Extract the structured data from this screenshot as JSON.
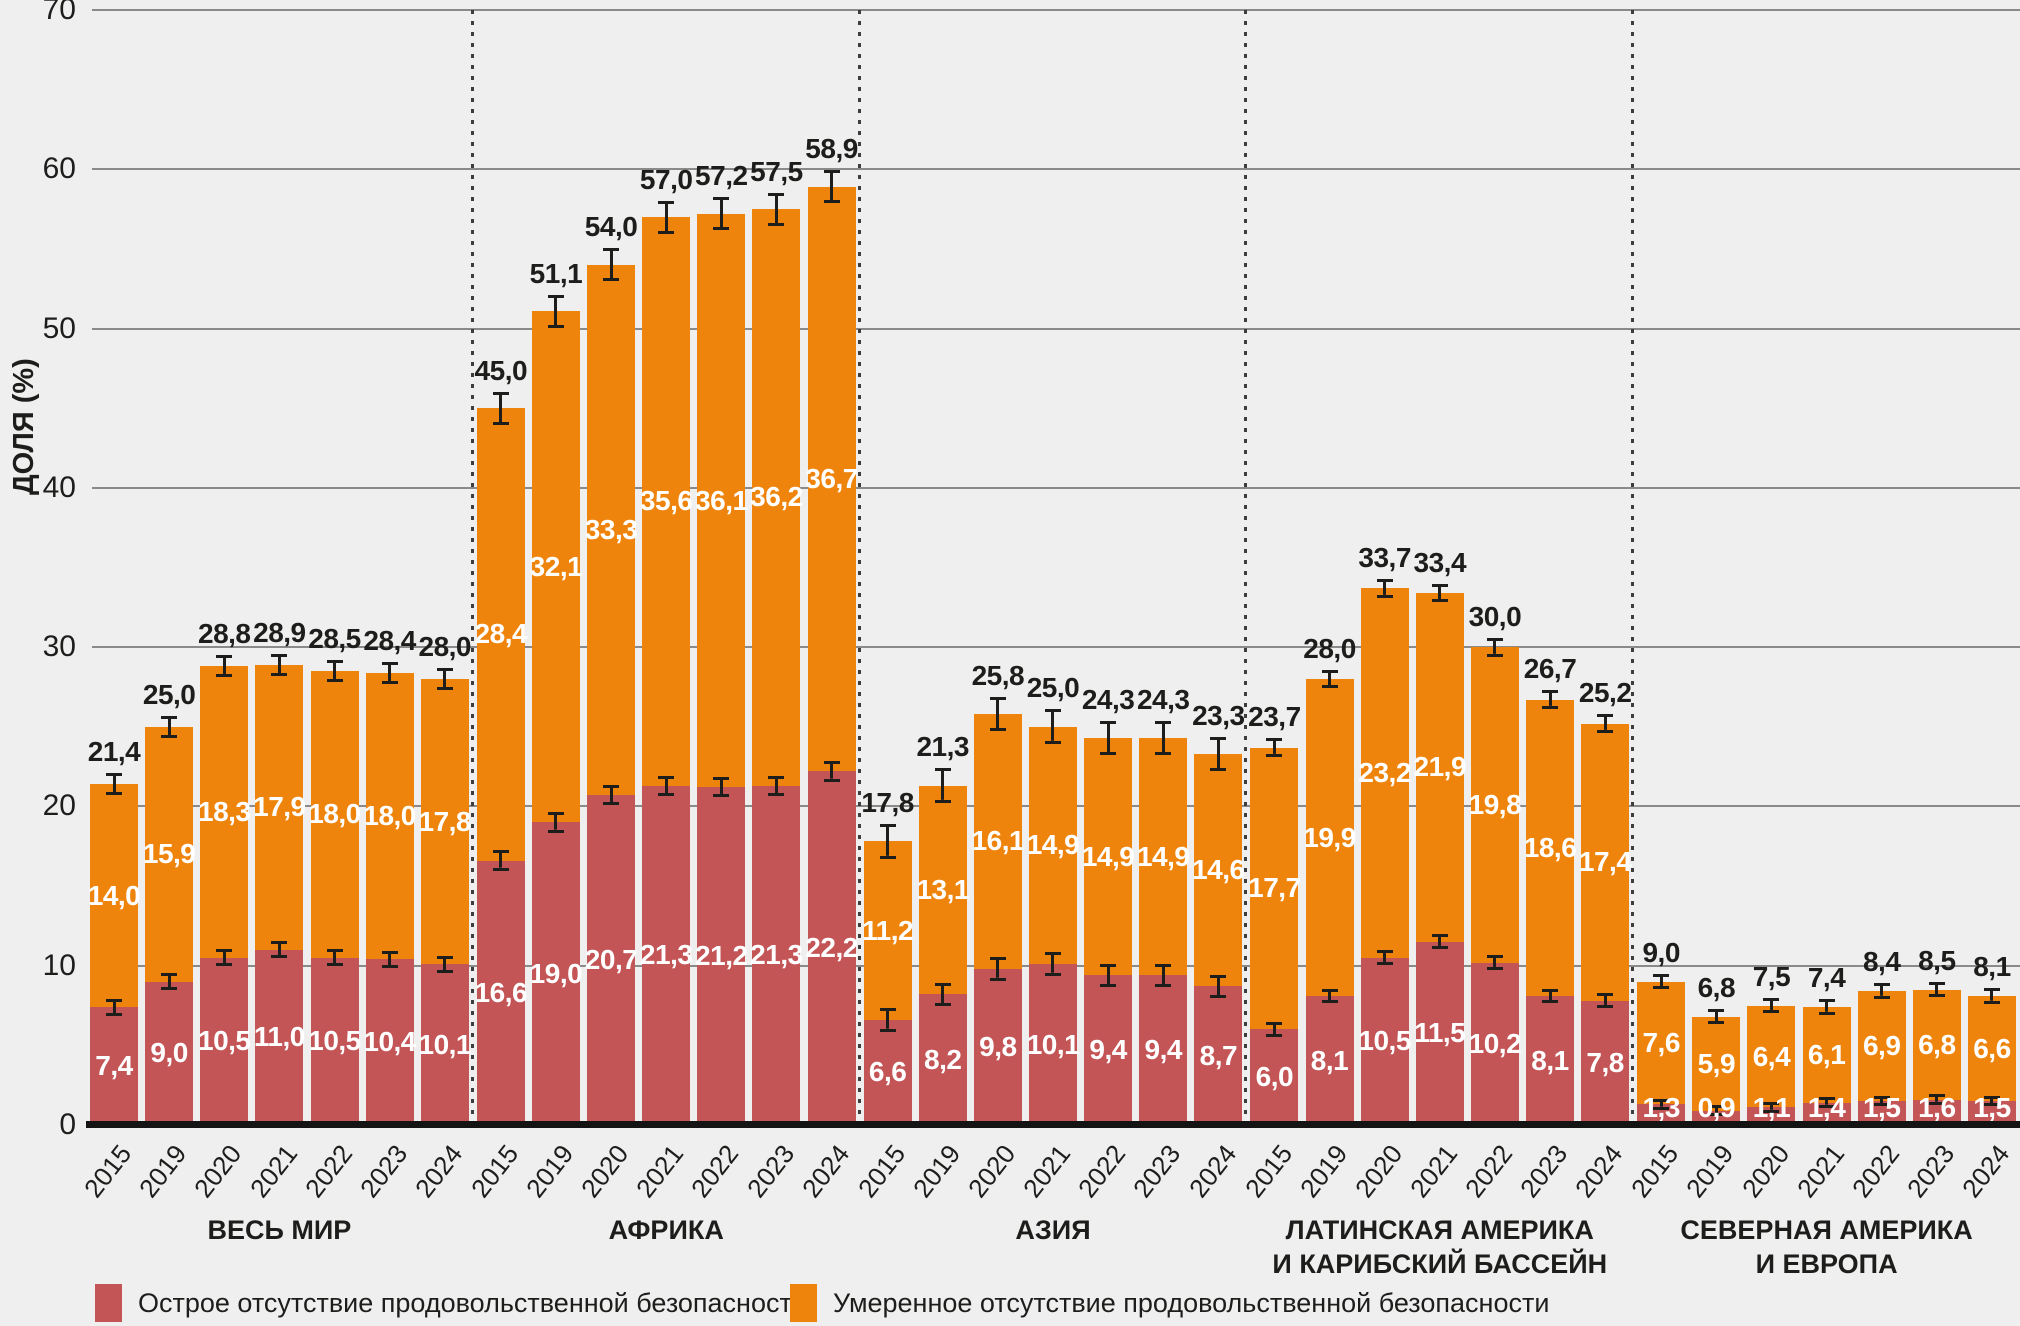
{
  "chart_data": {
    "type": "bar",
    "variant": "stacked-vertical-grouped",
    "title": "",
    "ylabel": "ДОЛЯ (%)",
    "ylim": [
      0,
      70
    ],
    "yticks": [
      0,
      10,
      20,
      30,
      40,
      50,
      60,
      70
    ],
    "grid": true,
    "decimal_separator": ",",
    "years": [
      "2015",
      "2019",
      "2020",
      "2021",
      "2022",
      "2023",
      "2024"
    ],
    "series_names": {
      "severe": "Острое отсутствие продовольственной безопасности",
      "moderate": "Умеренное отсутствие продовольственной безопасности"
    },
    "groups": [
      {
        "label_lines": [
          "ВЕСЬ МИР"
        ],
        "err_total": 0.5,
        "err_severe": 0.35,
        "bars": [
          {
            "year": "2015",
            "severe": "7,4",
            "moderate": "14,0",
            "total": "21,4"
          },
          {
            "year": "2019",
            "severe": "9,0",
            "moderate": "15,9",
            "total": "25,0"
          },
          {
            "year": "2020",
            "severe": "10,5",
            "moderate": "18,3",
            "total": "28,8"
          },
          {
            "year": "2021",
            "severe": "11,0",
            "moderate": "17,9",
            "total": "28,9"
          },
          {
            "year": "2022",
            "severe": "10,5",
            "moderate": "18,0",
            "total": "28,5"
          },
          {
            "year": "2023",
            "severe": "10,4",
            "moderate": "18,0",
            "total": "28,4"
          },
          {
            "year": "2024",
            "severe": "10,1",
            "moderate": "17,8",
            "total": "28,0"
          }
        ]
      },
      {
        "label_lines": [
          "АФРИКА"
        ],
        "err_total": 0.85,
        "err_severe": 0.45,
        "bars": [
          {
            "year": "2015",
            "severe": "16,6",
            "moderate": "28,4",
            "total": "45,0"
          },
          {
            "year": "2019",
            "severe": "19,0",
            "moderate": "32,1",
            "total": "51,1"
          },
          {
            "year": "2020",
            "severe": "20,7",
            "moderate": "33,3",
            "total": "54,0"
          },
          {
            "year": "2021",
            "severe": "21,3",
            "moderate": "35,6",
            "total": "57,0"
          },
          {
            "year": "2022",
            "severe": "21,2",
            "moderate": "36,1",
            "total": "57,2"
          },
          {
            "year": "2023",
            "severe": "21,3",
            "moderate": "36,2",
            "total": "57,5"
          },
          {
            "year": "2024",
            "severe": "22,2",
            "moderate": "36,7",
            "total": "58,9"
          }
        ]
      },
      {
        "label_lines": [
          "АЗИЯ"
        ],
        "err_total": 0.9,
        "err_severe": 0.55,
        "bars": [
          {
            "year": "2015",
            "severe": "6,6",
            "moderate": "11,2",
            "total": "17,8"
          },
          {
            "year": "2019",
            "severe": "8,2",
            "moderate": "13,1",
            "total": "21,3"
          },
          {
            "year": "2020",
            "severe": "9,8",
            "moderate": "16,1",
            "total": "25,8"
          },
          {
            "year": "2021",
            "severe": "10,1",
            "moderate": "14,9",
            "total": "25,0"
          },
          {
            "year": "2022",
            "severe": "9,4",
            "moderate": "14,9",
            "total": "24,3"
          },
          {
            "year": "2023",
            "severe": "9,4",
            "moderate": "14,9",
            "total": "24,3"
          },
          {
            "year": "2024",
            "severe": "8,7",
            "moderate": "14,6",
            "total": "23,3"
          }
        ]
      },
      {
        "label_lines": [
          "ЛАТИНСКАЯ АМЕРИКА",
          "И КАРИБСКИЙ БАССЕЙН"
        ],
        "err_total": 0.4,
        "err_severe": 0.28,
        "bars": [
          {
            "year": "2015",
            "severe": "6,0",
            "moderate": "17,7",
            "total": "23,7"
          },
          {
            "year": "2019",
            "severe": "8,1",
            "moderate": "19,9",
            "total": "28,0"
          },
          {
            "year": "2020",
            "severe": "10,5",
            "moderate": "23,2",
            "total": "33,7"
          },
          {
            "year": "2021",
            "severe": "11,5",
            "moderate": "21,9",
            "total": "33,4"
          },
          {
            "year": "2022",
            "severe": "10,2",
            "moderate": "19,8",
            "total": "30,0"
          },
          {
            "year": "2023",
            "severe": "8,1",
            "moderate": "18,6",
            "total": "26,7"
          },
          {
            "year": "2024",
            "severe": "7,8",
            "moderate": "17,4",
            "total": "25,2"
          }
        ]
      },
      {
        "label_lines": [
          "СЕВЕРНАЯ АМЕРИКА",
          "И ЕВРОПА"
        ],
        "err_total": 0.3,
        "err_severe": 0.14,
        "bars": [
          {
            "year": "2015",
            "severe": "1,3",
            "moderate": "7,6",
            "total": "9,0"
          },
          {
            "year": "2019",
            "severe": "0,9",
            "moderate": "5,9",
            "total": "6,8"
          },
          {
            "year": "2020",
            "severe": "1,1",
            "moderate": "6,4",
            "total": "7,5"
          },
          {
            "year": "2021",
            "severe": "1,4",
            "moderate": "6,1",
            "total": "7,4"
          },
          {
            "year": "2022",
            "severe": "1,5",
            "moderate": "6,9",
            "total": "8,4"
          },
          {
            "year": "2023",
            "severe": "1,6",
            "moderate": "6,8",
            "total": "8,5"
          },
          {
            "year": "2024",
            "severe": "1,5",
            "moderate": "6,6",
            "total": "8,1"
          }
        ]
      }
    ],
    "legend": [
      {
        "key": "severe",
        "label": "Острое отсутствие продовольственной безопасности",
        "color": "#c45557"
      },
      {
        "key": "moderate",
        "label": "Умеренное отсутствие продовольственной безопасности",
        "color": "#ef840c"
      }
    ],
    "colors": {
      "severe": "#c45557",
      "moderate": "#ef840c",
      "background": "#f0efef",
      "gridline": "#8a8a8a",
      "axis": "#141414",
      "text_dark": "#1d1d1b",
      "text_light": "#ffffff"
    },
    "error_bars_shown": true
  }
}
